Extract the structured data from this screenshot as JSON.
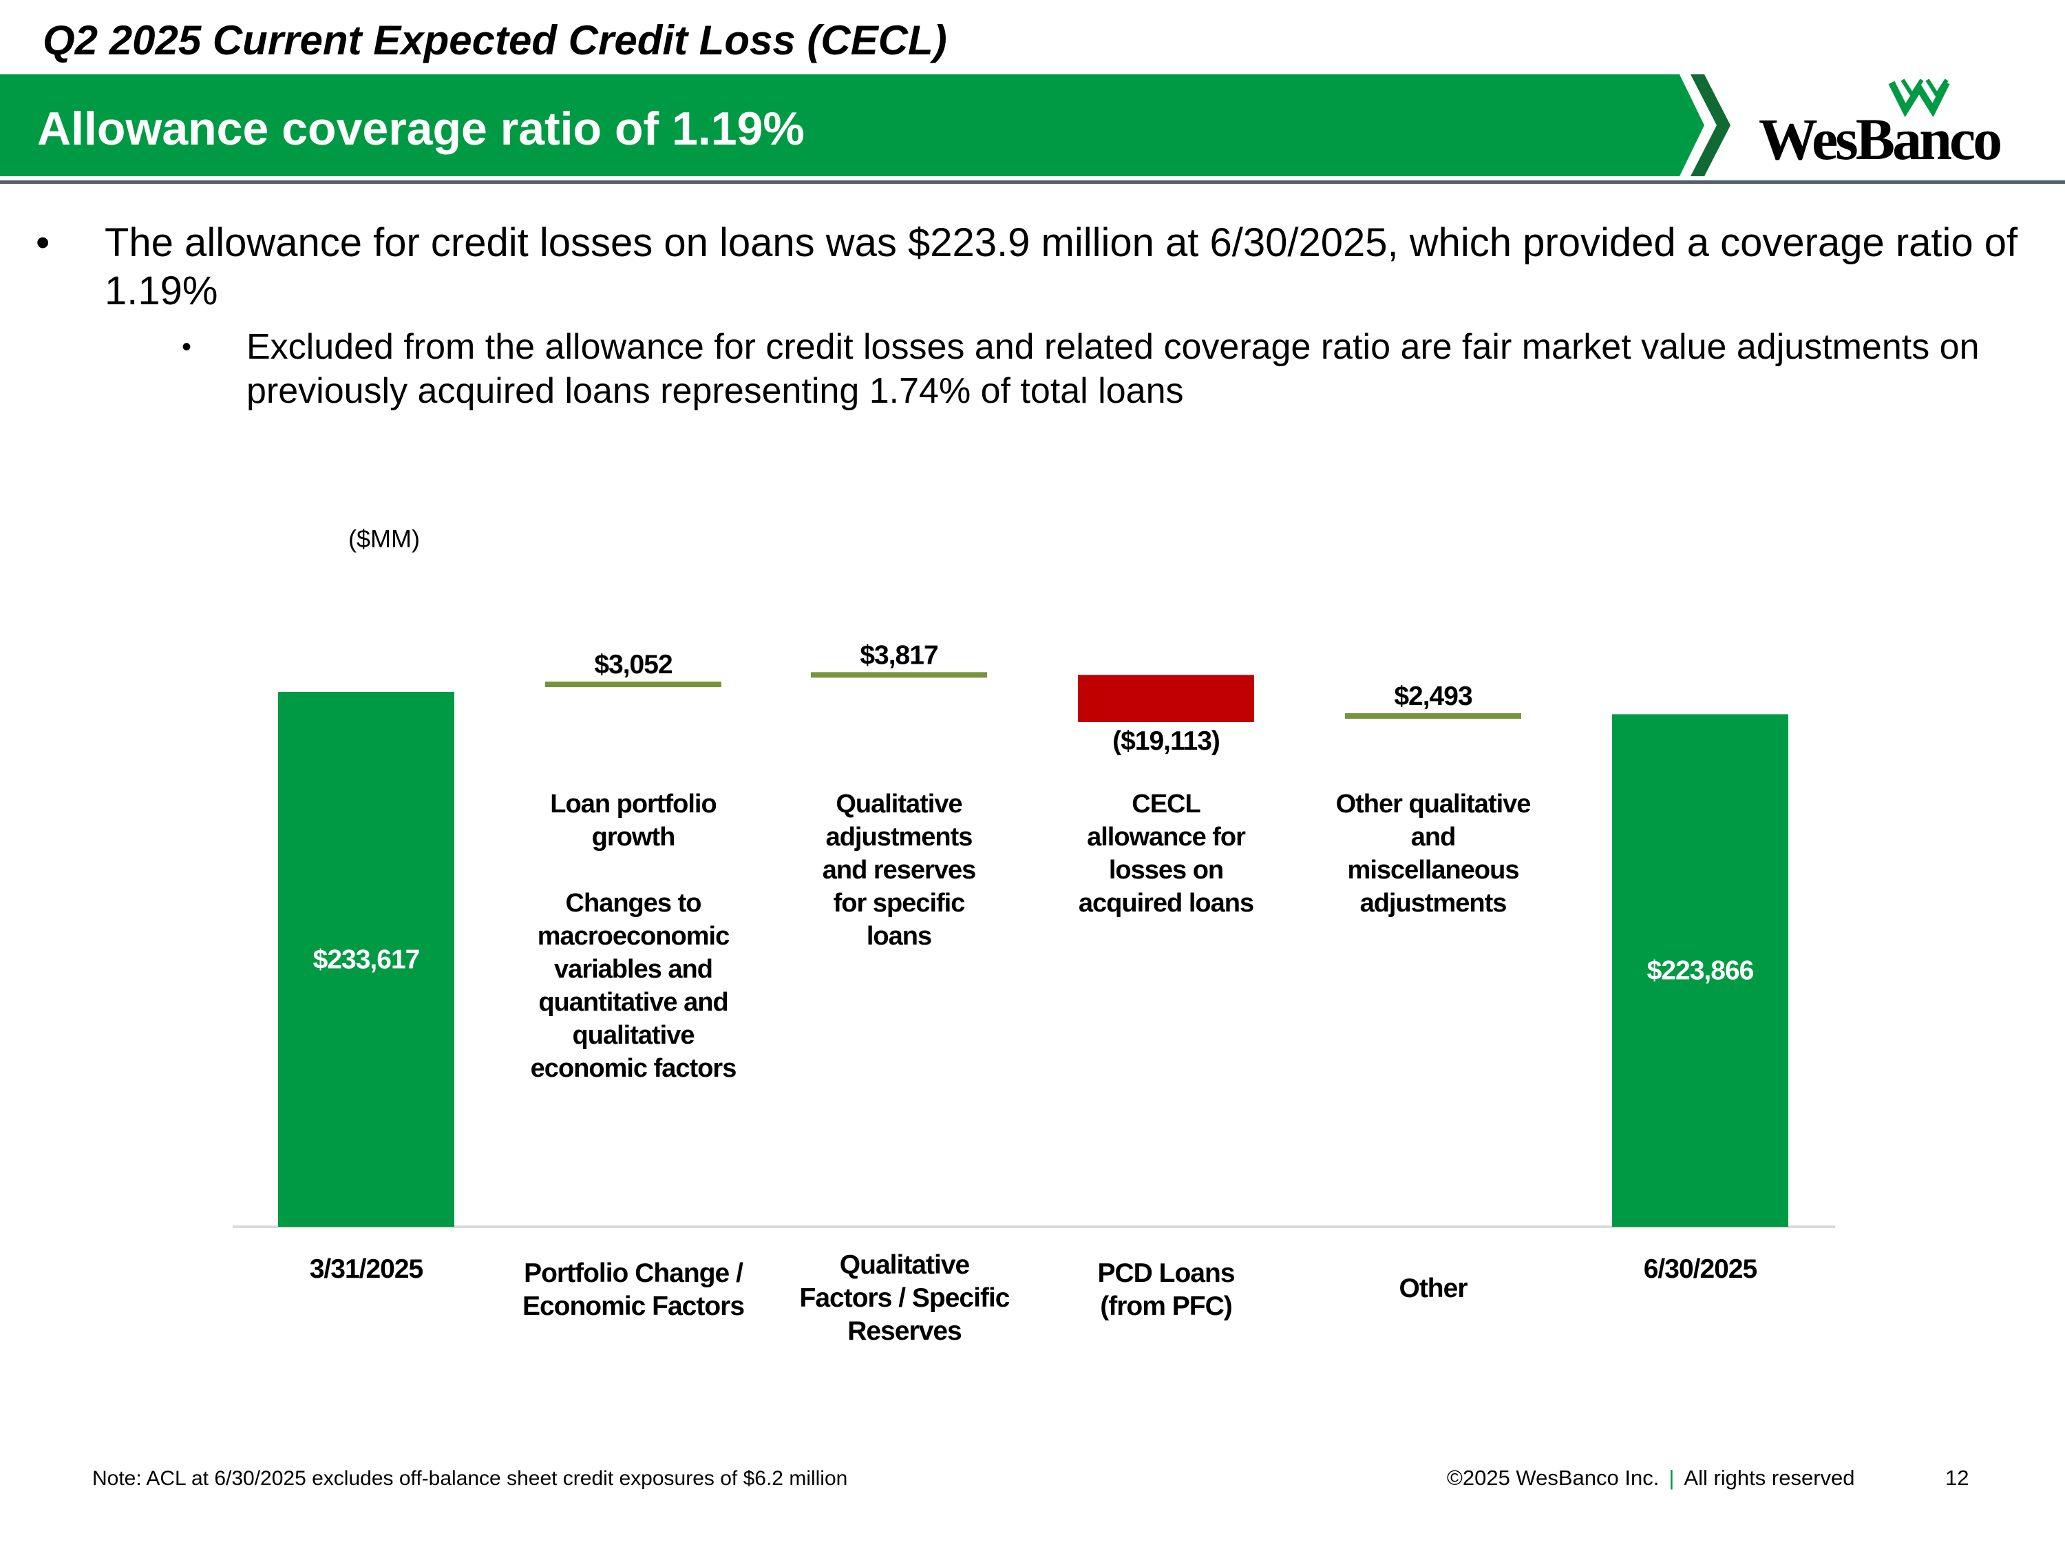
{
  "slide": {
    "title": "Q2 2025 Current Expected Credit Loss (CECL)",
    "banner_title": "Allowance coverage ratio of 1.19%",
    "logo_text": "WesBanco"
  },
  "bullets": {
    "main": "The allowance for credit losses on loans was $223.9 million at 6/30/2025, which provided a coverage ratio of 1.19%",
    "sub": "Excluded from the allowance for credit losses and related coverage ratio are fair market value adjustments on previously acquired loans representing 1.74% of total loans"
  },
  "colors": {
    "brand_green": "#009a44",
    "increase_line": "#77933c",
    "decrease_red": "#c00000",
    "axis_line": "#d9d9d9",
    "banner_dark": "#0f6b33"
  },
  "chart_data": {
    "type": "waterfall",
    "unit_label": "($MM)",
    "categories": [
      [
        "3/31/2025"
      ],
      [
        "Portfolio Change /",
        "Economic Factors"
      ],
      [
        "Qualitative",
        "Factors / Specific",
        "Reserves"
      ],
      [
        "PCD Loans",
        "(from PFC)"
      ],
      [
        "Other"
      ],
      [
        "6/30/2025"
      ]
    ],
    "values": [
      233617,
      3052,
      3817,
      -19113,
      2493,
      223866
    ],
    "value_labels": [
      "$233,617",
      "$3,052",
      "$3,817",
      "($19,113)",
      "$2,493",
      "$223,866"
    ],
    "kinds": [
      "total",
      "increase",
      "increase",
      "decrease",
      "increase",
      "total"
    ],
    "descriptions": [
      [],
      [
        "Loan portfolio",
        "growth",
        "",
        "Changes to",
        "macroeconomic",
        "variables and",
        "quantitative and",
        "qualitative",
        "economic factors"
      ],
      [
        "Qualitative",
        "adjustments",
        "and reserves",
        "for specific",
        "loans"
      ],
      [
        "CECL",
        "allowance for",
        "losses on",
        "acquired loans"
      ],
      [
        "Other qualitative",
        "and",
        "miscellaneous",
        "adjustments"
      ],
      []
    ],
    "legend": "none",
    "grid": false
  },
  "footer": {
    "note": "Note: ACL at 6/30/2025 excludes off-balance sheet credit exposures of $6.2 million",
    "copyright": "©2025 WesBanco Inc.",
    "separator": "|",
    "rights": "All rights reserved",
    "page_number": "12"
  }
}
